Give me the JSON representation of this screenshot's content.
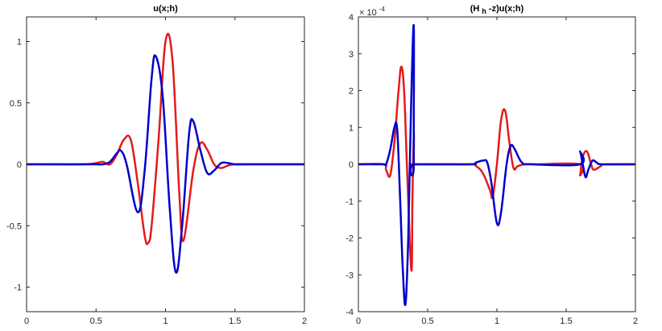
{
  "chart_data": [
    {
      "type": "line",
      "title": "u(x;h)",
      "xlim": [
        0,
        2
      ],
      "ylim": [
        -1.2,
        1.2
      ],
      "xticks": [
        0,
        0.5,
        1,
        1.5,
        2
      ],
      "xtick_labels": [
        "0",
        "0.5",
        "1",
        "1.5",
        "2"
      ],
      "yticks": [
        -1,
        -0.5,
        0,
        0.5,
        1
      ],
      "ytick_labels": [
        "-1",
        "-0.5",
        "0",
        "0.5",
        "1"
      ],
      "grid": false,
      "colors": [
        "#e41a1c",
        "#0000cc"
      ],
      "series": [
        {
          "x": [
            0,
            0.4,
            0.5,
            0.55,
            0.6,
            0.65,
            0.7,
            0.75,
            0.8,
            0.85,
            0.875,
            0.9,
            0.95,
            1.0,
            1.05,
            1.1,
            1.13,
            1.2,
            1.25,
            1.3,
            1.35,
            1.4,
            1.45,
            1.5,
            1.6,
            2.0
          ],
          "y": [
            0,
            0,
            0.01,
            0.02,
            0.0,
            0.08,
            0.2,
            0.2,
            -0.15,
            -0.58,
            -0.64,
            -0.5,
            0.2,
            1.0,
            0.85,
            -0.25,
            -0.62,
            -0.05,
            0.17,
            0.12,
            0.0,
            -0.03,
            -0.01,
            0,
            0,
            0
          ]
        },
        {
          "x": [
            0,
            0.4,
            0.5,
            0.55,
            0.6,
            0.65,
            0.68,
            0.72,
            0.8,
            0.85,
            0.9,
            0.93,
            0.98,
            1.03,
            1.075,
            1.12,
            1.17,
            1.2,
            1.25,
            1.3,
            1.35,
            1.4,
            1.45,
            1.5,
            1.6,
            2.0
          ],
          "y": [
            0,
            0,
            0.0,
            0.0,
            0.02,
            0.09,
            0.11,
            0.0,
            -0.39,
            -0.05,
            0.7,
            0.88,
            0.55,
            -0.35,
            -0.88,
            -0.5,
            0.25,
            0.35,
            0.12,
            -0.07,
            -0.05,
            0.01,
            0.01,
            0,
            0,
            0
          ]
        }
      ]
    },
    {
      "type": "line",
      "title_main": "(H",
      "title_sub": "h",
      "title_rest": "-z)u(x;h)",
      "exponent_label": "× 10",
      "exponent_power": "-4",
      "xlim": [
        0,
        2
      ],
      "ylim": [
        -4,
        4
      ],
      "xticks": [
        0,
        0.5,
        1,
        1.5,
        2
      ],
      "xtick_labels": [
        "0",
        "0.5",
        "1",
        "1.5",
        "2"
      ],
      "yticks": [
        -4,
        -3,
        -2,
        -1,
        0,
        1,
        2,
        3,
        4
      ],
      "ytick_labels": [
        "-4",
        "-3",
        "-2",
        "-1",
        "0",
        "1",
        "2",
        "3",
        "4"
      ],
      "grid": false,
      "colors": [
        "#e41a1c",
        "#0000cc"
      ],
      "series": [
        {
          "x": [
            0,
            0.18,
            0.2,
            0.23,
            0.26,
            0.29,
            0.31,
            0.33,
            0.35,
            0.37,
            0.385,
            0.39,
            0.4,
            0.4,
            0.4,
            0.41,
            0.8,
            0.85,
            0.9,
            0.95,
            0.97,
            1.0,
            1.03,
            1.06,
            1.09,
            1.12,
            1.15,
            1.2,
            1.3,
            1.6,
            1.6,
            1.62,
            1.65,
            1.68,
            1.7,
            1.75,
            1.78,
            2.0
          ],
          "y": [
            0,
            0,
            -0.15,
            -0.3,
            0.6,
            2.0,
            2.65,
            2.0,
            0.0,
            -2.0,
            -2.85,
            -1.0,
            0.8,
            0.0,
            0,
            0,
            0,
            -0.05,
            -0.25,
            -0.7,
            -0.88,
            0.0,
            1.2,
            1.45,
            0.6,
            -0.1,
            -0.05,
            0,
            0,
            0,
            -0.3,
            0.2,
            0.35,
            0.0,
            -0.15,
            -0.05,
            0,
            0
          ]
        },
        {
          "x": [
            0,
            0.18,
            0.2,
            0.23,
            0.26,
            0.28,
            0.3,
            0.32,
            0.34,
            0.36,
            0.38,
            0.4,
            0.4,
            0.41,
            0.8,
            0.85,
            0.9,
            0.93,
            0.96,
            1.0,
            1.03,
            1.07,
            1.1,
            1.13,
            1.18,
            1.25,
            1.6,
            1.6,
            1.62,
            1.64,
            1.66,
            1.69,
            1.72,
            1.76,
            2.0
          ],
          "y": [
            0,
            0,
            0.0,
            0.4,
            1.0,
            0.95,
            -0.8,
            -2.8,
            -3.8,
            -2.0,
            1.5,
            3.75,
            0.0,
            0,
            0,
            0.05,
            0.1,
            0.05,
            -0.5,
            -1.6,
            -1.3,
            0.0,
            0.5,
            0.4,
            0.05,
            0,
            0,
            0.35,
            0.0,
            -0.35,
            -0.15,
            0.1,
            0.05,
            0,
            0
          ]
        }
      ]
    }
  ]
}
